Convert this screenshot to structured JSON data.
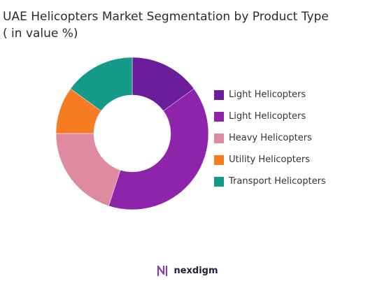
{
  "chart_data": {
    "type": "pie",
    "title": "UAE Helicopters Market Segmentation by Product Type",
    "subtitle": "( in value %)",
    "donut": true,
    "legend_position": "right",
    "categories": [
      "Light Helicopters",
      "Light Helicopters",
      "Heavy Helicopters",
      "Utility Helicopters",
      "Transport Helicopters"
    ],
    "values": [
      15,
      40,
      20,
      10,
      15
    ],
    "colors": [
      "#6b1d9c",
      "#8e24aa",
      "#e08aa1",
      "#f57c20",
      "#159a8a"
    ]
  },
  "brand": {
    "name": "nexdigm",
    "logo_icon": "nexdigm-logo-icon",
    "logo_color": "#7b3fb0"
  }
}
